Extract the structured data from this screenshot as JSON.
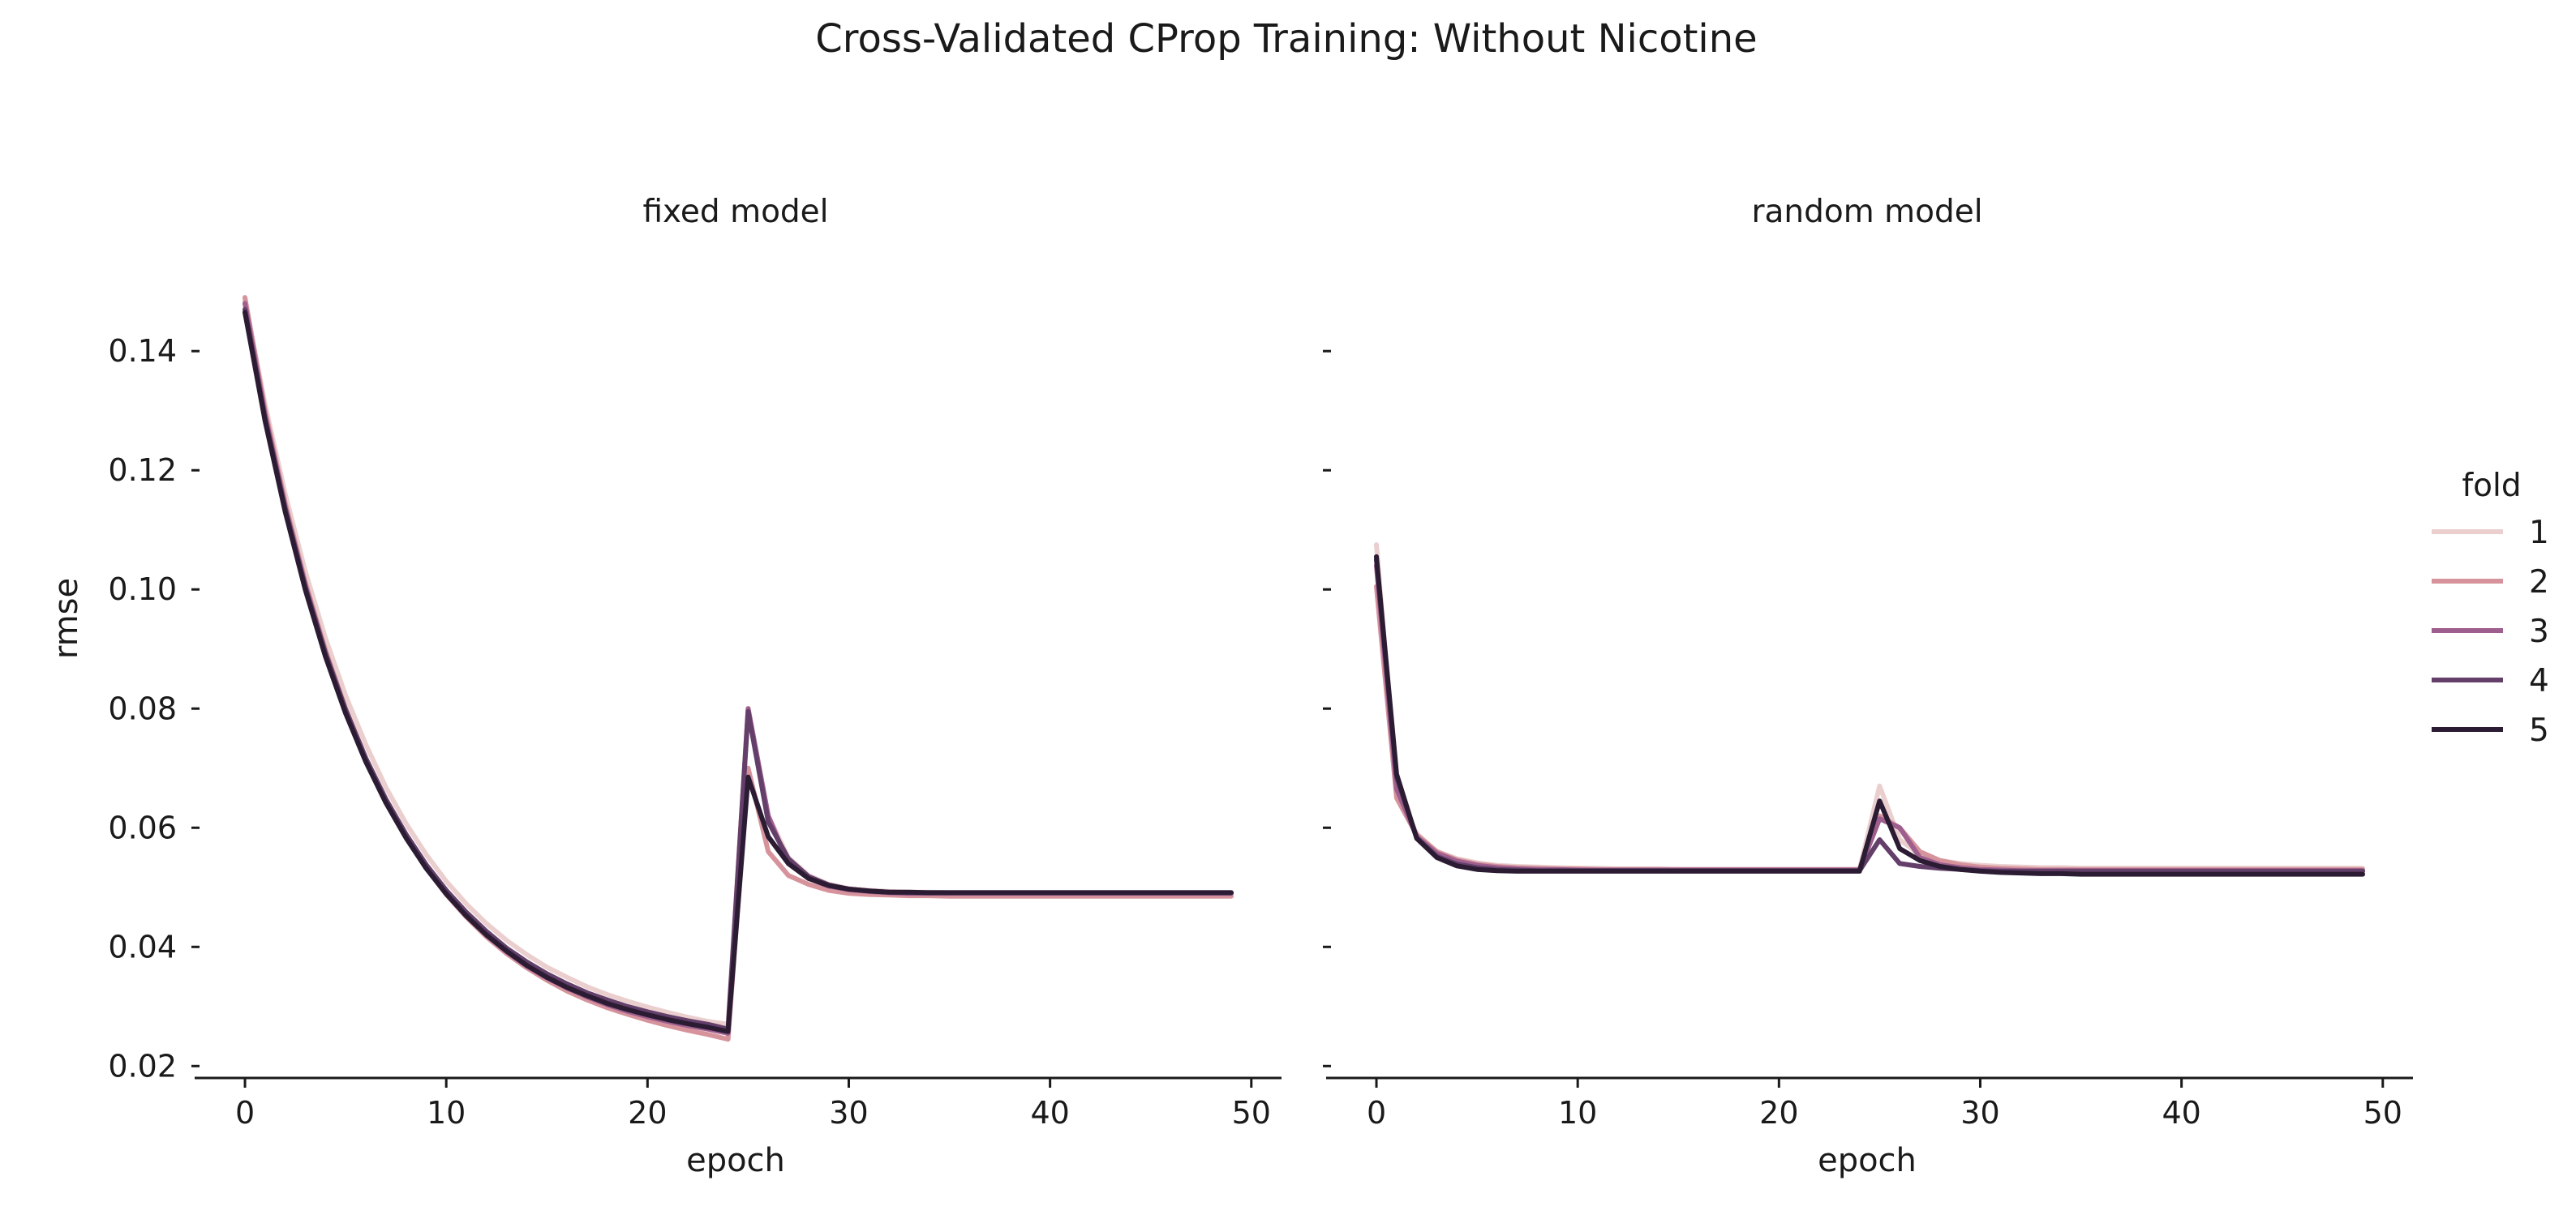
{
  "title": "Cross-Validated CProp Training: Without Nicotine",
  "legend": {
    "title": "fold",
    "placement": "right",
    "items": [
      {
        "label": "1",
        "color": "#ebcfcf"
      },
      {
        "label": "2",
        "color": "#d6939c"
      },
      {
        "label": "3",
        "color": "#9e5f8e"
      },
      {
        "label": "4",
        "color": "#633f6a"
      },
      {
        "label": "5",
        "color": "#2b1c34"
      }
    ]
  },
  "chart_data": [
    {
      "type": "line",
      "title": "fixed model",
      "xlabel": "epoch",
      "ylabel": "rmse",
      "xlim": [
        -2.5,
        51.5
      ],
      "ylim": [
        0.018,
        0.152
      ],
      "xticks": [
        0,
        10,
        20,
        30,
        40,
        50
      ],
      "yticks": [
        0.02,
        0.04,
        0.06,
        0.08,
        0.1,
        0.12,
        0.14
      ],
      "ytick_labels": [
        "0.02",
        "0.04",
        "0.06",
        "0.08",
        "0.10",
        "0.12",
        "0.14"
      ],
      "series": [
        {
          "name": "1",
          "color": "#ebcfcf",
          "x_start": 0,
          "values": [
            0.1485,
            0.131,
            0.116,
            0.103,
            0.0918,
            0.0822,
            0.074,
            0.0668,
            0.0607,
            0.0555,
            0.051,
            0.0472,
            0.0439,
            0.0411,
            0.0387,
            0.0366,
            0.0349,
            0.0333,
            0.032,
            0.0309,
            0.0299,
            0.029,
            0.0282,
            0.0275,
            0.027,
            0.08,
            0.062,
            0.055,
            0.052,
            0.0505,
            0.0498,
            0.0495,
            0.0493,
            0.0492,
            0.0492,
            0.0491,
            0.0491,
            0.0491,
            0.0491,
            0.0491,
            0.0491,
            0.0491,
            0.0491,
            0.0491,
            0.0491,
            0.0491,
            0.0491,
            0.0491,
            0.0491,
            0.0491
          ]
        },
        {
          "name": "2",
          "color": "#d6939c",
          "x_start": 0,
          "values": [
            0.149,
            0.13,
            0.1145,
            0.1012,
            0.0898,
            0.08,
            0.0717,
            0.0646,
            0.0585,
            0.0533,
            0.0488,
            0.045,
            0.0417,
            0.0389,
            0.0365,
            0.0344,
            0.0326,
            0.0311,
            0.0298,
            0.0287,
            0.0277,
            0.0268,
            0.026,
            0.0253,
            0.0245,
            0.07,
            0.056,
            0.052,
            0.0505,
            0.0495,
            0.049,
            0.0488,
            0.0487,
            0.0486,
            0.0486,
            0.0485,
            0.0485,
            0.0485,
            0.0485,
            0.0485,
            0.0485,
            0.0485,
            0.0485,
            0.0485,
            0.0485,
            0.0485,
            0.0485,
            0.0485,
            0.0485,
            0.0485
          ]
        },
        {
          "name": "3",
          "color": "#9e5f8e",
          "x_start": 0,
          "values": [
            0.148,
            0.1292,
            0.1138,
            0.1006,
            0.0893,
            0.0797,
            0.0715,
            0.0645,
            0.0585,
            0.0534,
            0.049,
            0.0452,
            0.042,
            0.0392,
            0.0368,
            0.0348,
            0.0331,
            0.0316,
            0.0303,
            0.0292,
            0.0283,
            0.0275,
            0.0268,
            0.0262,
            0.0255,
            0.08,
            0.062,
            0.054,
            0.0515,
            0.0502,
            0.0496,
            0.0493,
            0.0491,
            0.049,
            0.049,
            0.049,
            0.049,
            0.049,
            0.049,
            0.049,
            0.049,
            0.049,
            0.049,
            0.049,
            0.049,
            0.049,
            0.049,
            0.049,
            0.049,
            0.049
          ]
        },
        {
          "name": "4",
          "color": "#633f6a",
          "x_start": 0,
          "values": [
            0.147,
            0.1287,
            0.1135,
            0.1004,
            0.0893,
            0.0798,
            0.0717,
            0.0648,
            0.0589,
            0.0538,
            0.0495,
            0.0458,
            0.0426,
            0.0398,
            0.0375,
            0.0355,
            0.0338,
            0.0323,
            0.0311,
            0.03,
            0.0291,
            0.0283,
            0.0276,
            0.027,
            0.0262,
            0.0795,
            0.061,
            0.0548,
            0.0518,
            0.0504,
            0.0497,
            0.0494,
            0.0492,
            0.0491,
            0.0491,
            0.0491,
            0.0491,
            0.0491,
            0.0491,
            0.0491,
            0.0491,
            0.0491,
            0.0491,
            0.0491,
            0.0491,
            0.0491,
            0.0491,
            0.0491,
            0.0491,
            0.0491
          ]
        },
        {
          "name": "5",
          "color": "#2b1c34",
          "x_start": 0,
          "values": [
            0.1465,
            0.1282,
            0.113,
            0.0999,
            0.0887,
            0.0792,
            0.0711,
            0.0642,
            0.0583,
            0.0532,
            0.0489,
            0.0452,
            0.042,
            0.0393,
            0.0369,
            0.0349,
            0.0332,
            0.0318,
            0.0305,
            0.0295,
            0.0286,
            0.0278,
            0.0271,
            0.0265,
            0.0258,
            0.0685,
            0.0585,
            0.054,
            0.0515,
            0.0503,
            0.0497,
            0.0494,
            0.0492,
            0.0492,
            0.0491,
            0.0491,
            0.0491,
            0.0491,
            0.0491,
            0.0491,
            0.0491,
            0.0491,
            0.0491,
            0.0491,
            0.0491,
            0.0491,
            0.0491,
            0.0491,
            0.0491,
            0.0491
          ]
        }
      ]
    },
    {
      "type": "line",
      "title": "random model",
      "xlabel": "epoch",
      "ylabel": "",
      "xlim": [
        -2.5,
        51.5
      ],
      "ylim": [
        0.018,
        0.152
      ],
      "xticks": [
        0,
        10,
        20,
        30,
        40,
        50
      ],
      "yticks": [
        0.02,
        0.04,
        0.06,
        0.08,
        0.1,
        0.12,
        0.14
      ],
      "ytick_labels": [
        "",
        "",
        "",
        "",
        "",
        "",
        ""
      ],
      "series": [
        {
          "name": "1",
          "color": "#ebcfcf",
          "x_start": 0,
          "values": [
            0.1075,
            0.066,
            0.059,
            0.056,
            0.0548,
            0.0541,
            0.0537,
            0.0535,
            0.0534,
            0.0533,
            0.0532,
            0.0532,
            0.0531,
            0.0531,
            0.0531,
            0.053,
            0.053,
            0.053,
            0.053,
            0.053,
            0.053,
            0.053,
            0.053,
            0.053,
            0.053,
            0.067,
            0.058,
            0.0555,
            0.0545,
            0.054,
            0.0537,
            0.0535,
            0.0534,
            0.0533,
            0.0533,
            0.0532,
            0.0532,
            0.0532,
            0.0532,
            0.0532,
            0.0532,
            0.0532,
            0.0532,
            0.0532,
            0.0532,
            0.0532,
            0.0532,
            0.0532,
            0.0532,
            0.0532
          ]
        },
        {
          "name": "2",
          "color": "#d6939c",
          "x_start": 0,
          "values": [
            0.1005,
            0.065,
            0.0588,
            0.056,
            0.0546,
            0.0539,
            0.0535,
            0.0533,
            0.0532,
            0.0531,
            0.0531,
            0.053,
            0.053,
            0.053,
            0.053,
            0.053,
            0.053,
            0.053,
            0.053,
            0.053,
            0.053,
            0.053,
            0.053,
            0.053,
            0.053,
            0.062,
            0.06,
            0.056,
            0.0545,
            0.0538,
            0.0534,
            0.0532,
            0.0531,
            0.053,
            0.053,
            0.053,
            0.053,
            0.053,
            0.053,
            0.053,
            0.053,
            0.053,
            0.053,
            0.053,
            0.053,
            0.053,
            0.053,
            0.053,
            0.053,
            0.053
          ]
        },
        {
          "name": "3",
          "color": "#9e5f8e",
          "x_start": 0,
          "values": [
            0.104,
            0.0665,
            0.0585,
            0.0557,
            0.0544,
            0.0537,
            0.0533,
            0.0531,
            0.053,
            0.053,
            0.0529,
            0.0529,
            0.0529,
            0.0529,
            0.0529,
            0.0529,
            0.0529,
            0.0529,
            0.0529,
            0.0529,
            0.0529,
            0.0529,
            0.0529,
            0.0529,
            0.0529,
            0.0615,
            0.06,
            0.055,
            0.0538,
            0.0533,
            0.053,
            0.0529,
            0.0528,
            0.0528,
            0.0528,
            0.0528,
            0.0528,
            0.0528,
            0.0528,
            0.0528,
            0.0528,
            0.0528,
            0.0528,
            0.0528,
            0.0528,
            0.0528,
            0.0528,
            0.0528,
            0.0528,
            0.0528
          ]
        },
        {
          "name": "4",
          "color": "#633f6a",
          "x_start": 0,
          "values": [
            0.105,
            0.0685,
            0.0583,
            0.0552,
            0.0539,
            0.0533,
            0.053,
            0.0529,
            0.0528,
            0.0528,
            0.0528,
            0.0528,
            0.0528,
            0.0528,
            0.0528,
            0.0528,
            0.0528,
            0.0528,
            0.0528,
            0.0528,
            0.0528,
            0.0528,
            0.0528,
            0.0528,
            0.0528,
            0.058,
            0.054,
            0.0535,
            0.0532,
            0.053,
            0.0528,
            0.0527,
            0.0527,
            0.0527,
            0.0527,
            0.0527,
            0.0527,
            0.0527,
            0.0527,
            0.0527,
            0.0527,
            0.0527,
            0.0527,
            0.0527,
            0.0527,
            0.0527,
            0.0527,
            0.0527,
            0.0527,
            0.0527
          ]
        },
        {
          "name": "5",
          "color": "#2b1c34",
          "x_start": 0,
          "values": [
            0.1055,
            0.069,
            0.0582,
            0.055,
            0.0536,
            0.053,
            0.0528,
            0.0527,
            0.0527,
            0.0527,
            0.0527,
            0.0527,
            0.0527,
            0.0527,
            0.0527,
            0.0527,
            0.0527,
            0.0527,
            0.0527,
            0.0527,
            0.0527,
            0.0527,
            0.0527,
            0.0527,
            0.0527,
            0.0645,
            0.0565,
            0.0545,
            0.0535,
            0.053,
            0.0527,
            0.0525,
            0.0524,
            0.0523,
            0.0523,
            0.0522,
            0.0522,
            0.0522,
            0.0522,
            0.0522,
            0.0522,
            0.0522,
            0.0522,
            0.0522,
            0.0522,
            0.0522,
            0.0522,
            0.0522,
            0.0522,
            0.0522
          ]
        }
      ]
    }
  ]
}
